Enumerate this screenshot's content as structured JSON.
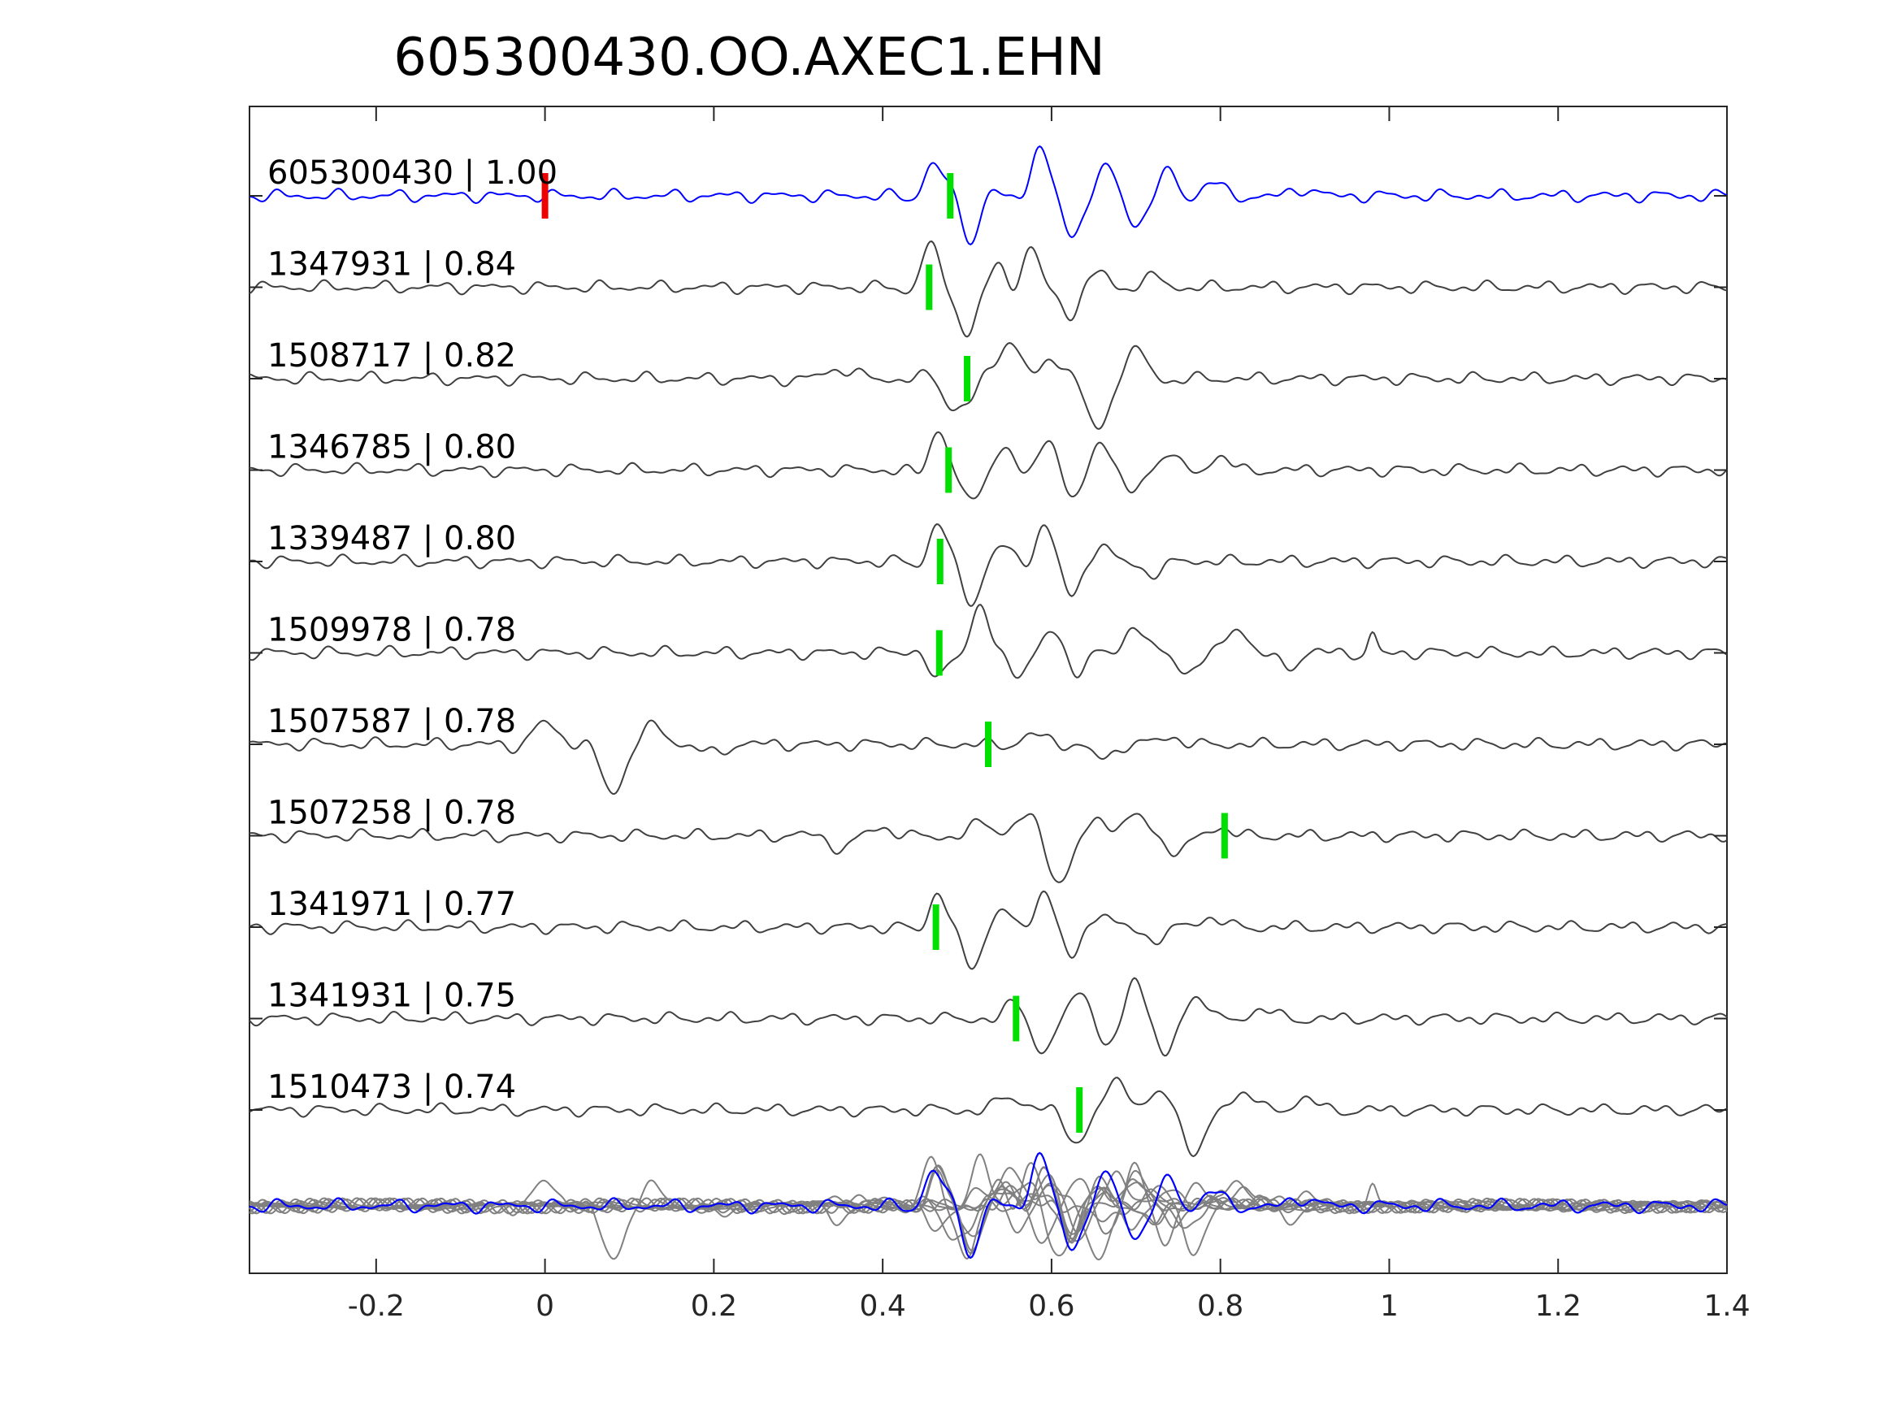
{
  "chart_data": {
    "type": "line",
    "title": "605300430.OO.AXEC1.EHN",
    "xlabel": "",
    "ylabel": "",
    "xlim": [
      -0.35,
      1.4
    ],
    "x_ticks": [
      -0.2,
      0,
      0.2,
      0.4,
      0.6,
      0.8,
      1,
      1.2,
      1.4
    ],
    "x_tick_labels": [
      "-0.2",
      "0",
      "0.2",
      "0.4",
      "0.6",
      "0.8",
      "1",
      "1.2",
      "1.4"
    ],
    "grid": false,
    "traces": [
      {
        "id": "605300430",
        "cc": "1.00",
        "pick": 0.48,
        "origin_pick": 0.0,
        "color": "#0000ff",
        "wavelets": [
          [
            0.46,
            0.7,
            0.022
          ],
          [
            0.505,
            -0.95,
            0.02
          ],
          [
            0.585,
            1.0,
            0.022
          ],
          [
            0.625,
            -0.85,
            0.02
          ],
          [
            0.665,
            0.55,
            0.02
          ],
          [
            0.7,
            -0.6,
            0.02
          ],
          [
            0.74,
            0.5,
            0.02
          ],
          [
            0.79,
            0.3,
            0.025
          ],
          [
            0.9,
            0.15,
            0.03
          ]
        ]
      },
      {
        "id": "1347931",
        "cc": "0.84",
        "pick": 0.455,
        "color": "#404040",
        "wavelets": [
          [
            0.455,
            0.9,
            0.02
          ],
          [
            0.5,
            -1.0,
            0.022
          ],
          [
            0.54,
            0.4,
            0.02
          ],
          [
            0.575,
            0.85,
            0.02
          ],
          [
            0.62,
            -0.6,
            0.02
          ],
          [
            0.66,
            0.3,
            0.02
          ],
          [
            0.72,
            0.2,
            0.03
          ]
        ]
      },
      {
        "id": "1508717",
        "cc": "0.82",
        "pick": 0.5,
        "color": "#404040",
        "wavelets": [
          [
            0.48,
            -0.6,
            0.02
          ],
          [
            0.5,
            -0.5,
            0.02
          ],
          [
            0.55,
            0.8,
            0.03
          ],
          [
            0.6,
            0.4,
            0.03
          ],
          [
            0.655,
            -1.0,
            0.03
          ],
          [
            0.7,
            0.5,
            0.03
          ],
          [
            0.35,
            0.2,
            0.04
          ]
        ]
      },
      {
        "id": "1346785",
        "cc": "0.80",
        "pick": 0.478,
        "color": "#404040",
        "wavelets": [
          [
            0.465,
            0.85,
            0.02
          ],
          [
            0.505,
            -0.7,
            0.02
          ],
          [
            0.545,
            0.45,
            0.02
          ],
          [
            0.595,
            0.7,
            0.02
          ],
          [
            0.625,
            -0.55,
            0.02
          ],
          [
            0.66,
            0.6,
            0.02
          ],
          [
            0.695,
            -0.5,
            0.02
          ],
          [
            0.74,
            0.4,
            0.02
          ],
          [
            0.8,
            0.3,
            0.025
          ]
        ]
      },
      {
        "id": "1339487",
        "cc": "0.80",
        "pick": 0.468,
        "color": "#404040",
        "wavelets": [
          [
            0.465,
            0.8,
            0.02
          ],
          [
            0.505,
            -0.85,
            0.022
          ],
          [
            0.545,
            0.3,
            0.02
          ],
          [
            0.59,
            0.75,
            0.02
          ],
          [
            0.625,
            -0.7,
            0.02
          ],
          [
            0.66,
            0.3,
            0.02
          ],
          [
            0.72,
            -0.25,
            0.03
          ]
        ]
      },
      {
        "id": "1509978",
        "cc": "0.78",
        "pick": 0.467,
        "color": "#404040",
        "wavelets": [
          [
            0.465,
            -0.6,
            0.02
          ],
          [
            0.515,
            1.0,
            0.022
          ],
          [
            0.56,
            -0.4,
            0.02
          ],
          [
            0.6,
            0.4,
            0.02
          ],
          [
            0.63,
            -0.35,
            0.02
          ],
          [
            0.7,
            0.6,
            0.025
          ],
          [
            0.76,
            -0.4,
            0.025
          ],
          [
            0.82,
            0.55,
            0.025
          ],
          [
            0.88,
            -0.3,
            0.025
          ],
          [
            0.98,
            0.4,
            0.01
          ]
        ]
      },
      {
        "id": "1507587",
        "cc": "0.78",
        "pick": 0.525,
        "color": "#404040",
        "wavelets": [
          [
            0.0,
            0.45,
            0.03
          ],
          [
            0.08,
            -1.0,
            0.03
          ],
          [
            0.13,
            0.3,
            0.03
          ],
          [
            0.2,
            -0.2,
            0.03
          ],
          [
            0.58,
            0.2,
            0.03
          ],
          [
            0.66,
            -0.3,
            0.03
          ],
          [
            0.74,
            0.15,
            0.03
          ]
        ]
      },
      {
        "id": "1507258",
        "cc": "0.78",
        "pick": 0.805,
        "color": "#404040",
        "wavelets": [
          [
            0.35,
            -0.25,
            0.03
          ],
          [
            0.4,
            0.15,
            0.03
          ],
          [
            0.52,
            0.3,
            0.03
          ],
          [
            0.57,
            0.35,
            0.03
          ],
          [
            0.61,
            -0.9,
            0.03
          ],
          [
            0.66,
            0.3,
            0.03
          ],
          [
            0.7,
            0.4,
            0.03
          ],
          [
            0.75,
            -0.3,
            0.03
          ],
          [
            0.8,
            0.15,
            0.03
          ]
        ]
      },
      {
        "id": "1341971",
        "cc": "0.77",
        "pick": 0.463,
        "color": "#404040",
        "wavelets": [
          [
            0.465,
            0.7,
            0.02
          ],
          [
            0.505,
            -0.85,
            0.022
          ],
          [
            0.545,
            0.35,
            0.02
          ],
          [
            0.59,
            0.8,
            0.02
          ],
          [
            0.625,
            -0.6,
            0.02
          ],
          [
            0.66,
            0.3,
            0.02
          ],
          [
            0.72,
            -0.25,
            0.03
          ],
          [
            0.79,
            0.2,
            0.03
          ]
        ]
      },
      {
        "id": "1341931",
        "cc": "0.75",
        "pick": 0.558,
        "color": "#404040",
        "wavelets": [
          [
            0.555,
            0.3,
            0.02
          ],
          [
            0.59,
            -0.75,
            0.022
          ],
          [
            0.635,
            0.6,
            0.02
          ],
          [
            0.665,
            -0.55,
            0.02
          ],
          [
            0.7,
            0.8,
            0.02
          ],
          [
            0.735,
            -0.8,
            0.02
          ],
          [
            0.775,
            0.45,
            0.025
          ],
          [
            0.85,
            0.2,
            0.03
          ]
        ]
      },
      {
        "id": "1510473",
        "cc": "0.74",
        "pick": 0.633,
        "color": "#404040",
        "wavelets": [
          [
            0.55,
            0.3,
            0.03
          ],
          [
            0.63,
            -0.6,
            0.03
          ],
          [
            0.68,
            0.6,
            0.03
          ],
          [
            0.73,
            0.3,
            0.03
          ],
          [
            0.77,
            -0.85,
            0.03
          ],
          [
            0.83,
            0.35,
            0.03
          ],
          [
            0.9,
            0.25,
            0.03
          ]
        ]
      }
    ]
  }
}
